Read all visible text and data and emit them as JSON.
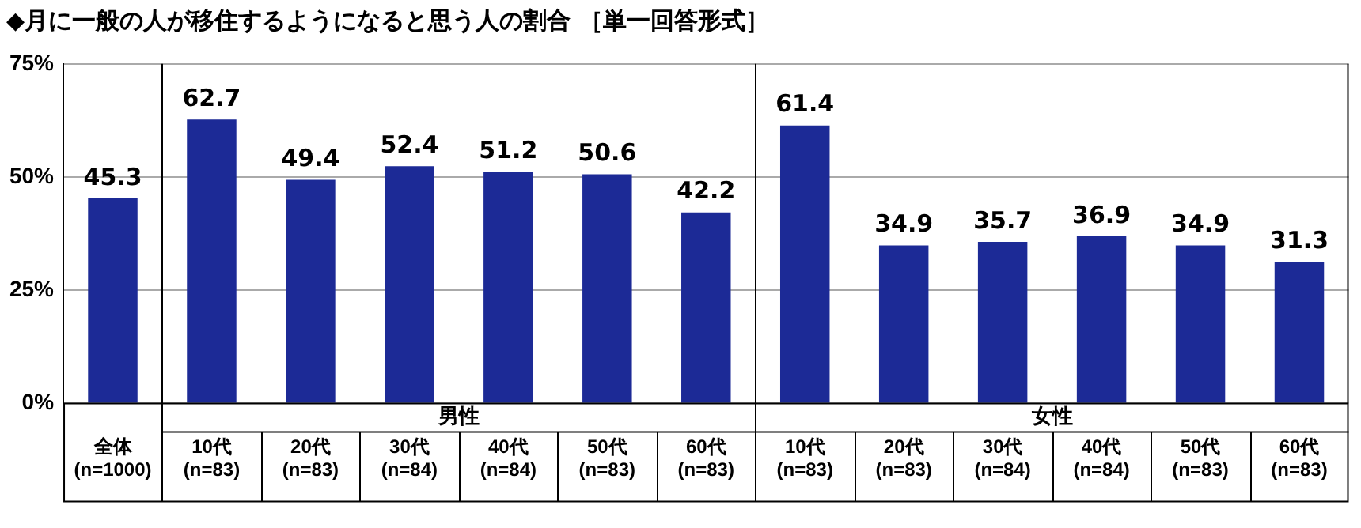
{
  "chart_data": {
    "type": "bar",
    "title": "◆月に一般の人が移住するようになると思う人の割合 ［単一回答形式］",
    "categories": [
      "全体\n(n=1000)",
      "10代\n(n=83)",
      "20代\n(n=83)",
      "30代\n(n=84)",
      "40代\n(n=84)",
      "50代\n(n=83)",
      "60代\n(n=83)",
      "10代\n(n=83)",
      "20代\n(n=83)",
      "30代\n(n=84)",
      "40代\n(n=84)",
      "50代\n(n=83)",
      "60代\n(n=83)"
    ],
    "values": [
      45.3,
      62.7,
      49.4,
      52.4,
      51.2,
      50.6,
      42.2,
      61.4,
      34.9,
      35.7,
      36.9,
      34.9,
      31.3
    ],
    "color": "#1c2a96",
    "data_labels": true,
    "ylim": [
      0,
      75
    ],
    "yticks": [
      {
        "value": 0,
        "label": "0%"
      },
      {
        "value": 25,
        "label": "25%"
      },
      {
        "value": 50,
        "label": "50%"
      },
      {
        "value": 75,
        "label": "75%"
      }
    ],
    "grid": "y",
    "annotations": [
      "男性",
      "女性"
    ]
  }
}
